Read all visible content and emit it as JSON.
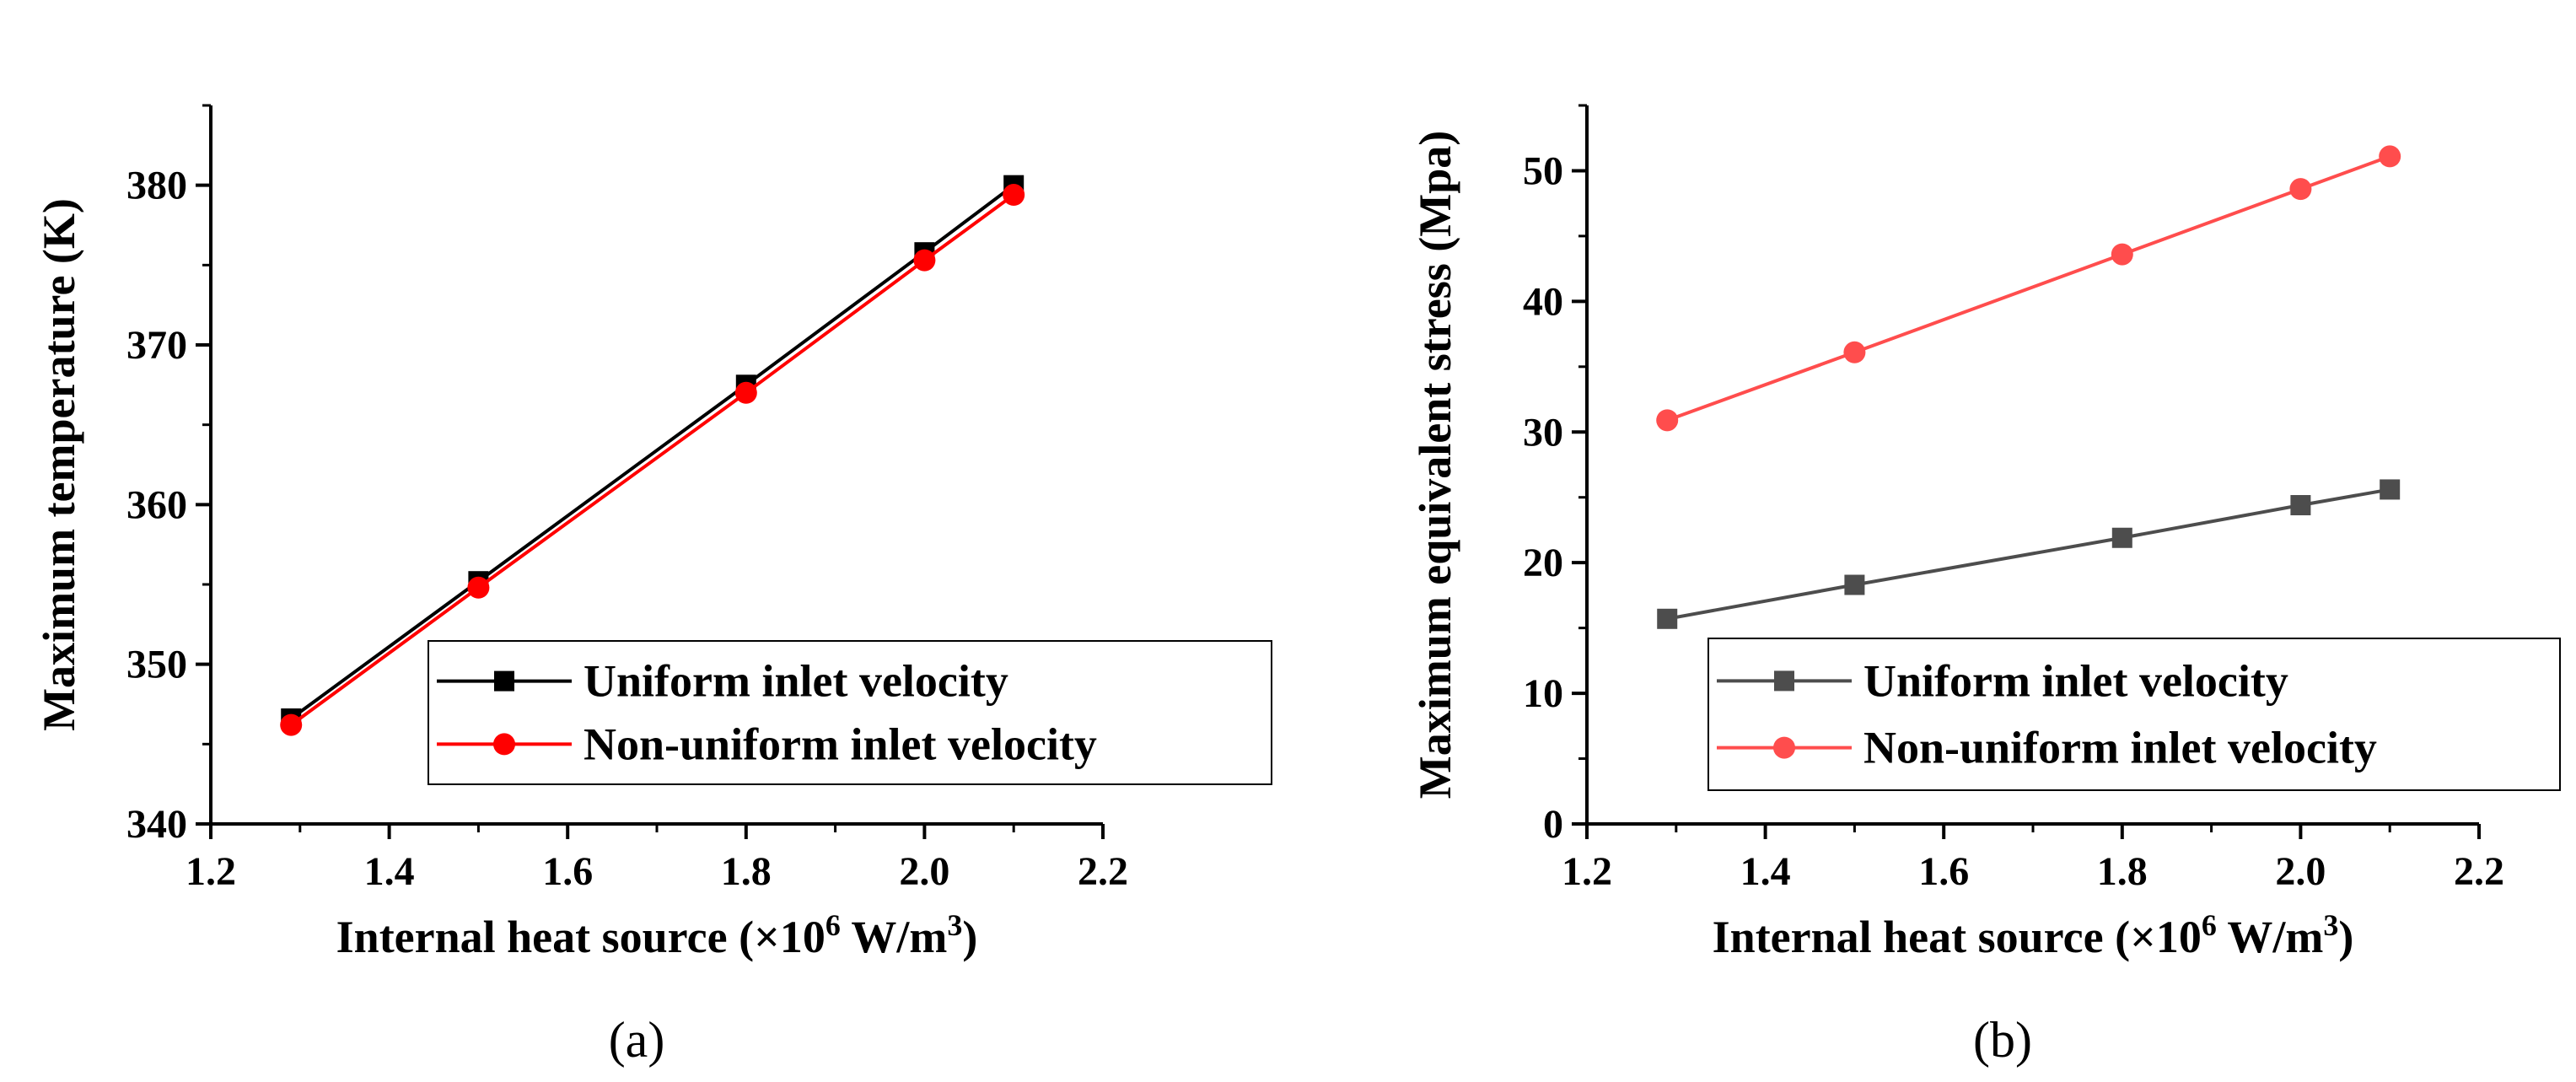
{
  "chart_data": [
    {
      "type": "line",
      "panel_label": "(a)",
      "x": [
        1.29,
        1.5,
        1.8,
        2.0,
        2.1
      ],
      "series": [
        {
          "name": "Uniform inlet velocity",
          "values": [
            346.6,
            355.2,
            367.5,
            375.8,
            380.0
          ],
          "color": "#000000",
          "marker": "square"
        },
        {
          "name": "Non-uniform inlet velocity",
          "values": [
            346.2,
            354.8,
            367.0,
            375.3,
            379.4
          ],
          "color": "#ff0000",
          "marker": "circle"
        }
      ],
      "xlabel": {
        "main": "Internal heat source (×10",
        "exp1": "6",
        "mid": " W/m",
        "exp2": "3",
        "end": ")"
      },
      "ylabel": "Maximum temperature (K)",
      "xlim": [
        1.2,
        2.2
      ],
      "ylim": [
        340,
        385
      ],
      "xticks": [
        "1.2",
        "1.4",
        "1.6",
        "1.8",
        "2.0",
        "2.2"
      ],
      "yticks": [
        "340",
        "350",
        "360",
        "370",
        "380"
      ],
      "legend_position": "lower-right"
    },
    {
      "type": "line",
      "panel_label": "(b)",
      "x": [
        1.29,
        1.5,
        1.8,
        2.0,
        2.1
      ],
      "series": [
        {
          "name": "Uniform inlet velocity",
          "values": [
            15.7,
            18.3,
            21.9,
            24.4,
            25.6
          ],
          "color": "#4d4d4d",
          "marker": "square"
        },
        {
          "name": "Non-uniform inlet velocity",
          "values": [
            30.9,
            36.1,
            43.6,
            48.6,
            51.1
          ],
          "color": "#ff4d4d",
          "marker": "circle"
        }
      ],
      "xlabel": {
        "main": "Internal heat source (×10",
        "exp1": "6",
        "mid": " W/m",
        "exp2": "3",
        "end": ")"
      },
      "ylabel": "Maximum equivalent stress (Mpa)",
      "xlim": [
        1.2,
        2.2
      ],
      "ylim": [
        0,
        55
      ],
      "xticks": [
        "1.2",
        "1.4",
        "1.6",
        "1.8",
        "2.0",
        "2.2"
      ],
      "yticks": [
        "0",
        "10",
        "20",
        "30",
        "40",
        "50"
      ],
      "legend_position": "lower-right"
    }
  ]
}
